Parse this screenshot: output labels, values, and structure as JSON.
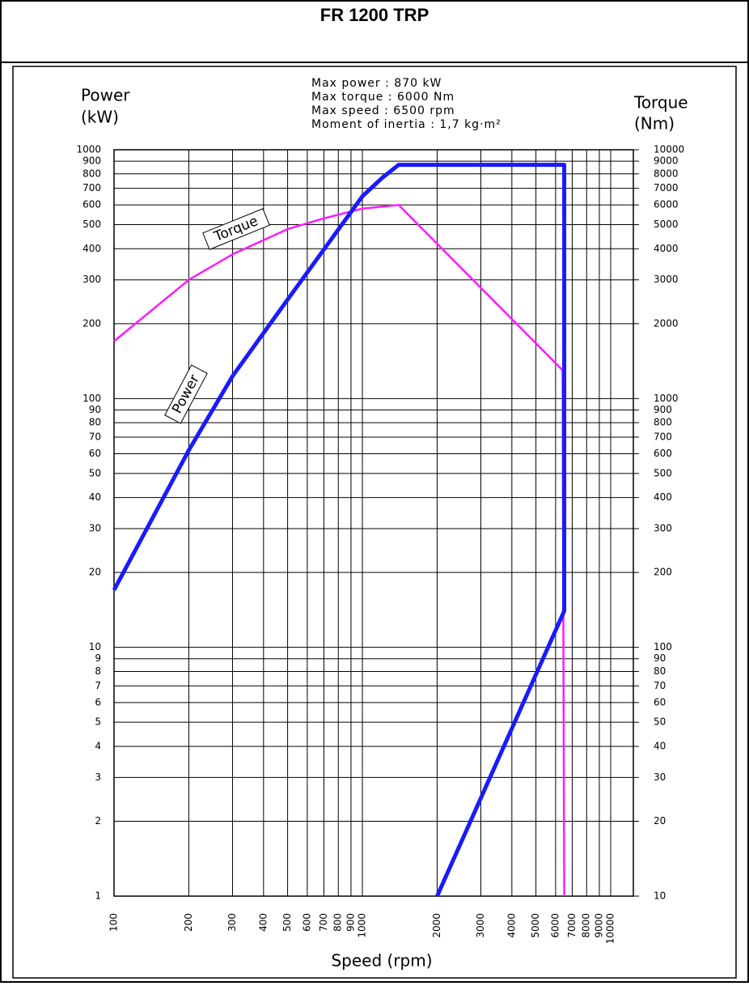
{
  "chart_data": {
    "type": "line",
    "title": "FR 1200 TRP",
    "specs": [
      "Max power : 870 kW",
      "Max torque : 6000 Nm",
      "Max speed : 6500 rpm",
      "Moment of inertia : 1,7 kg·m²"
    ],
    "y_label": [
      "Power",
      "(kW)"
    ],
    "y2_label": [
      "Torque",
      "(Nm)"
    ],
    "x_label": "Speed (rpm)",
    "log_scale": true,
    "grid": true,
    "xlim": [
      100,
      10000
    ],
    "xticks": [
      100,
      200,
      300,
      400,
      500,
      600,
      700,
      800,
      900,
      1000,
      2000,
      3000,
      4000,
      5000,
      6000,
      7000,
      8000,
      9000,
      10000
    ],
    "ylim": [
      1,
      1000
    ],
    "yticks": [
      1,
      2,
      3,
      4,
      5,
      6,
      7,
      8,
      9,
      10,
      20,
      30,
      40,
      50,
      60,
      70,
      80,
      90,
      100,
      200,
      300,
      400,
      500,
      600,
      700,
      800,
      900,
      1000
    ],
    "y2lim": [
      10,
      10000
    ],
    "y2ticks": [
      10,
      20,
      30,
      40,
      50,
      60,
      70,
      80,
      90,
      100,
      200,
      300,
      400,
      500,
      600,
      700,
      800,
      900,
      1000,
      2000,
      3000,
      4000,
      5000,
      6000,
      7000,
      8000,
      9000,
      10000
    ],
    "series": [
      {
        "name": "Power",
        "color": "#1a1aff",
        "x": [
          100,
          200,
          300,
          500,
          1000,
          1200,
          1400,
          6500,
          6500,
          2000
        ],
        "values": [
          17,
          62,
          123,
          250,
          650,
          770,
          870,
          870,
          14,
          1
        ]
      },
      {
        "name": "Torque",
        "color": "#ff1aff",
        "axis": "y2",
        "x": [
          100,
          200,
          300,
          500,
          700,
          1000,
          1400,
          6400,
          6500
        ],
        "values": [
          1700,
          3000,
          3800,
          4800,
          5300,
          5800,
          6000,
          1300,
          10
        ]
      }
    ]
  }
}
